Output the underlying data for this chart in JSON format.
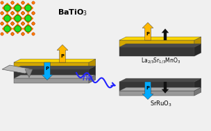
{
  "bg_color": "#f0f0f0",
  "label_batio3": "BaTiO$_3$",
  "label_lsmo": "La$_{2/3}$Sr$_{1/3}$MnO$_3$",
  "label_srro": "SrRuO$_3$",
  "label_hv": "$h\\nu$",
  "arrow_up_color": "#FFB800",
  "arrow_down_color": "#00AAFF",
  "arrow_black_color": "#111111",
  "slab_yellow_color": "#FFD700",
  "slab_yellow_side": "#B89000",
  "slab_yellow_front": "#D4A800",
  "slab_dark_top": "#4A4A4A",
  "slab_dark_side": "#282828",
  "slab_dark_front": "#363636",
  "slab_grey_top": "#AAAAAA",
  "slab_grey_side": "#777777",
  "slab_grey_front": "#999999",
  "crystal_green": "#22DD22",
  "crystal_bg": "#8B8B00",
  "crystal_orange": "#FF7700",
  "wave_color": "#2222FF",
  "tip_color": "#999999",
  "tip_dark": "#666666"
}
